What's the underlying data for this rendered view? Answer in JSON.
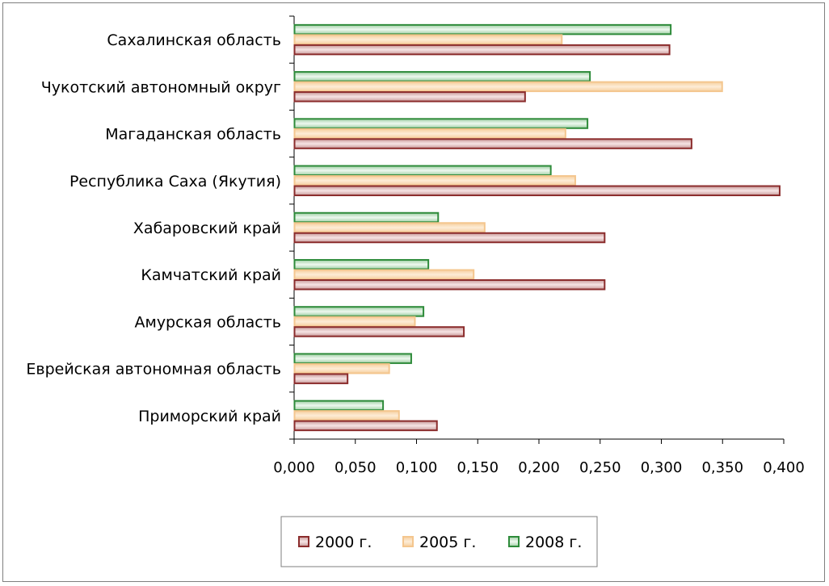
{
  "chart_data": {
    "type": "bar",
    "orientation": "horizontal",
    "categories": [
      "Сахалинская область",
      "Чукотский автономный округ",
      "Магаданская область",
      "Республика Саха (Якутия)",
      "Хабаровский край",
      "Камчатский край",
      "Амурская область",
      "Еврейская автономная область",
      "Приморский край"
    ],
    "series": [
      {
        "name": "2000 г.",
        "values": [
          0.307,
          0.189,
          0.325,
          0.397,
          0.254,
          0.254,
          0.139,
          0.044,
          0.117
        ],
        "color": "#8b2c2c",
        "fill": "#e8c8c8"
      },
      {
        "name": "2005 г.",
        "values": [
          0.219,
          0.35,
          0.222,
          0.23,
          0.156,
          0.147,
          0.099,
          0.078,
          0.086
        ],
        "color": "#f4c68e",
        "fill": "#fbe4c6"
      },
      {
        "name": "2008 г.",
        "values": [
          0.308,
          0.242,
          0.24,
          0.21,
          0.118,
          0.11,
          0.106,
          0.096,
          0.073
        ],
        "color": "#2e8b3a",
        "fill": "#d6ecd8"
      }
    ],
    "xlim": [
      0,
      0.4
    ],
    "xticks": [
      "0,000",
      "0,050",
      "0,100",
      "0,150",
      "0,200",
      "0,250",
      "0,300",
      "0,350",
      "0,400"
    ],
    "title": "",
    "xlabel": "",
    "ylabel": "",
    "legend": "bottom"
  }
}
